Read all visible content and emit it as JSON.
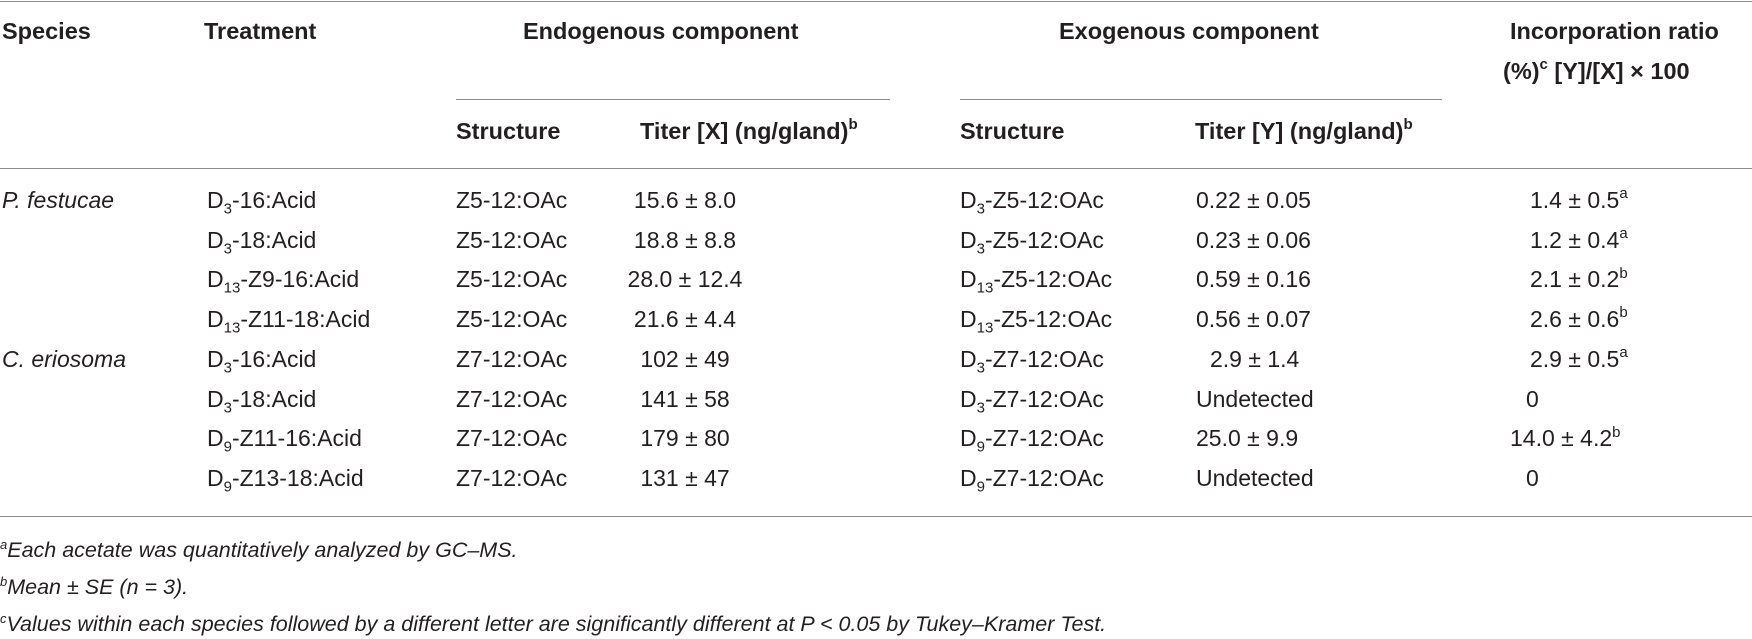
{
  "header": {
    "species": "Species",
    "treatment": "Treatment",
    "endogenous": "Endogenous component",
    "exogenous": "Exogenous component",
    "ratio_line1": "Incorporation ratio",
    "ratio_line2_pre": "(%)",
    "ratio_line2_sup": "c",
    "ratio_line2_post": " [Y]/[X] × 100",
    "endo_structure": "Structure",
    "endo_titer": "Titer [X] (ng/gland)",
    "endo_titer_sup": "b",
    "exo_structure": "Structure",
    "exo_titer": "Titer [Y] (ng/gland)",
    "exo_titer_sup": "b"
  },
  "rows": [
    {
      "species": "P. festucae",
      "t_pre": "D",
      "t_sub": "3",
      "t_post": "-16:Acid",
      "endo_structure": "Z5-12:OAc",
      "endo_titer": "15.6 ± 8.0",
      "x_pre": "D",
      "x_sub": "3",
      "x_post": "-Z5-12:OAc",
      "exo_titer": "0.22 ± 0.05",
      "ratio": "1.4 ± 0.5",
      "ratio_sup": "a"
    },
    {
      "species": "",
      "t_pre": "D",
      "t_sub": "3",
      "t_post": "-18:Acid",
      "endo_structure": "Z5-12:OAc",
      "endo_titer": "18.8 ± 8.8",
      "x_pre": "D",
      "x_sub": "3",
      "x_post": "-Z5-12:OAc",
      "exo_titer": "0.23 ± 0.06",
      "ratio": "1.2 ± 0.4",
      "ratio_sup": "a"
    },
    {
      "species": "",
      "t_pre": "D",
      "t_sub": "13",
      "t_post": "-Z9-16:Acid",
      "endo_structure": "Z5-12:OAc",
      "endo_titer": "28.0 ± 12.4",
      "x_pre": "D",
      "x_sub": "13",
      "x_post": "-Z5-12:OAc",
      "exo_titer": "0.59 ± 0.16",
      "ratio": "2.1 ± 0.2",
      "ratio_sup": "b"
    },
    {
      "species": "",
      "t_pre": "D",
      "t_sub": "13",
      "t_post": "-Z11-18:Acid",
      "endo_structure": "Z5-12:OAc",
      "endo_titer": "21.6 ± 4.4",
      "x_pre": "D",
      "x_sub": "13",
      "x_post": "-Z5-12:OAc",
      "exo_titer": "0.56 ± 0.07",
      "ratio": "2.6 ± 0.6",
      "ratio_sup": "b"
    },
    {
      "species": "C. eriosoma",
      "t_pre": "D",
      "t_sub": "3",
      "t_post": "-16:Acid",
      "endo_structure": "Z7-12:OAc",
      "endo_titer": "102 ± 49",
      "x_pre": "D",
      "x_sub": "3",
      "x_post": "-Z7-12:OAc",
      "exo_titer": "2.9 ± 1.4",
      "ratio": "2.9 ± 0.5",
      "ratio_sup": "a"
    },
    {
      "species": "",
      "t_pre": "D",
      "t_sub": "3",
      "t_post": "-18:Acid",
      "endo_structure": "Z7-12:OAc",
      "endo_titer": "141 ± 58",
      "x_pre": "D",
      "x_sub": "3",
      "x_post": "-Z7-12:OAc",
      "exo_titer": "Undetected",
      "ratio": "0",
      "ratio_sup": ""
    },
    {
      "species": "",
      "t_pre": "D",
      "t_sub": "9",
      "t_post": "-Z11-16:Acid",
      "endo_structure": "Z7-12:OAc",
      "endo_titer": "179 ± 80",
      "x_pre": "D",
      "x_sub": "9",
      "x_post": "-Z7-12:OAc",
      "exo_titer": "25.0 ± 9.9",
      "ratio": "14.0 ± 4.2",
      "ratio_sup": "b"
    },
    {
      "species": "",
      "t_pre": "D",
      "t_sub": "9",
      "t_post": "-Z13-18:Acid",
      "endo_structure": "Z7-12:OAc",
      "endo_titer": "131 ± 47",
      "x_pre": "D",
      "x_sub": "9",
      "x_post": "-Z7-12:OAc",
      "exo_titer": "Undetected",
      "ratio": "0",
      "ratio_sup": ""
    }
  ],
  "footnotes": [
    {
      "mark": "a",
      "text": "Each acetate was quantitatively analyzed by GC–MS."
    },
    {
      "mark": "b",
      "text": "Mean ± SE (n = 3)."
    },
    {
      "mark": "c",
      "text": "Values within each species followed by a different letter are significantly different at P < 0.05 by Tukey–Kramer Test."
    }
  ]
}
